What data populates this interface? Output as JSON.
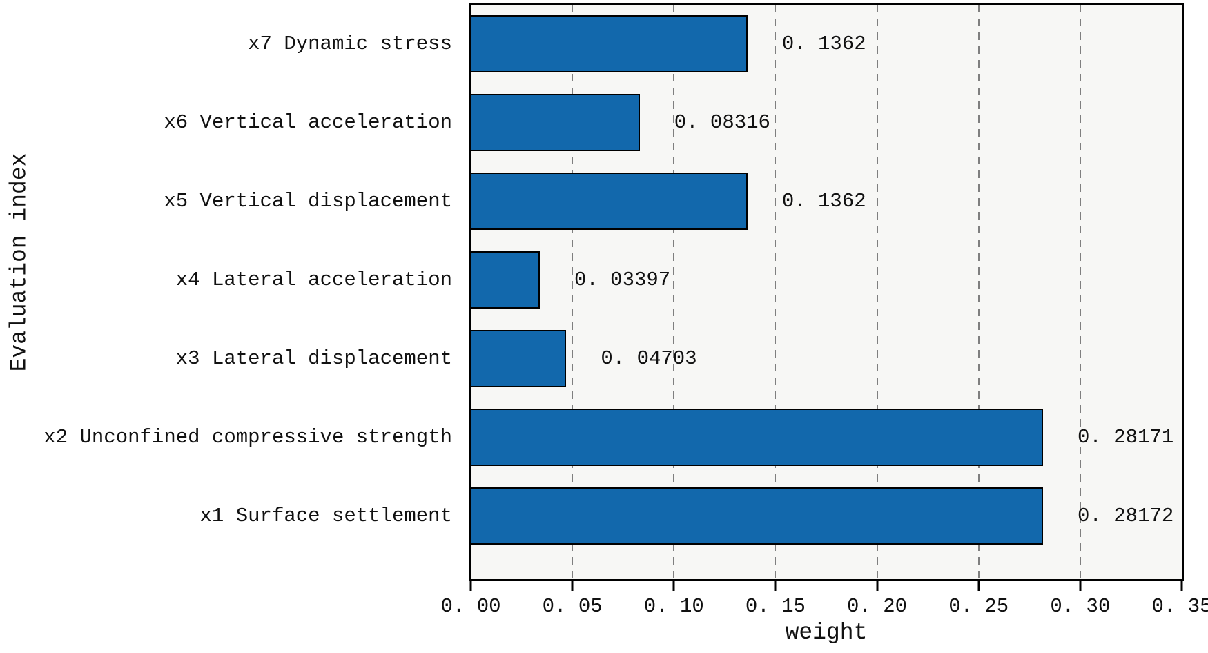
{
  "figure": {
    "background": "#ffffff",
    "plot_background": "#f7f7f5",
    "plot_border_color": "#000000"
  },
  "chart_data": {
    "type": "bar",
    "orientation": "horizontal",
    "title": "",
    "xlabel": "weight",
    "ylabel": "Evaluation index",
    "xlim": [
      0,
      0.35
    ],
    "xticks": [
      0.0,
      0.05,
      0.1,
      0.15,
      0.2,
      0.25,
      0.3,
      0.35
    ],
    "xtick_labels": [
      "0. 00",
      "0. 05",
      "0. 10",
      "0. 15",
      "0. 20",
      "0. 25",
      "0. 30",
      "0. 35"
    ],
    "grid": {
      "vertical_dashed": true,
      "color": "#7f7f7f",
      "at": [
        0.05,
        0.1,
        0.15,
        0.2,
        0.25,
        0.3
      ]
    },
    "bar_color": "#1268ac",
    "bar_edge_color": "#000000",
    "legend": "none",
    "rows_top_to_bottom": [
      {
        "category": "x7 Dynamic stress",
        "value": 0.1362,
        "value_label": "0. 1362"
      },
      {
        "category": "x6 Vertical acceleration",
        "value": 0.08316,
        "value_label": "0. 08316"
      },
      {
        "category": "x5 Vertical displacement",
        "value": 0.1362,
        "value_label": "0. 1362"
      },
      {
        "category": "x4 Lateral acceleration",
        "value": 0.03397,
        "value_label": "0. 03397"
      },
      {
        "category": "x3 Lateral displacement",
        "value": 0.04703,
        "value_label": "0. 04703"
      },
      {
        "category": "x2 Unconfined compressive strength",
        "value": 0.28171,
        "value_label": "0. 28171"
      },
      {
        "category": "x1 Surface settlement",
        "value": 0.28172,
        "value_label": "0. 28172"
      }
    ]
  }
}
